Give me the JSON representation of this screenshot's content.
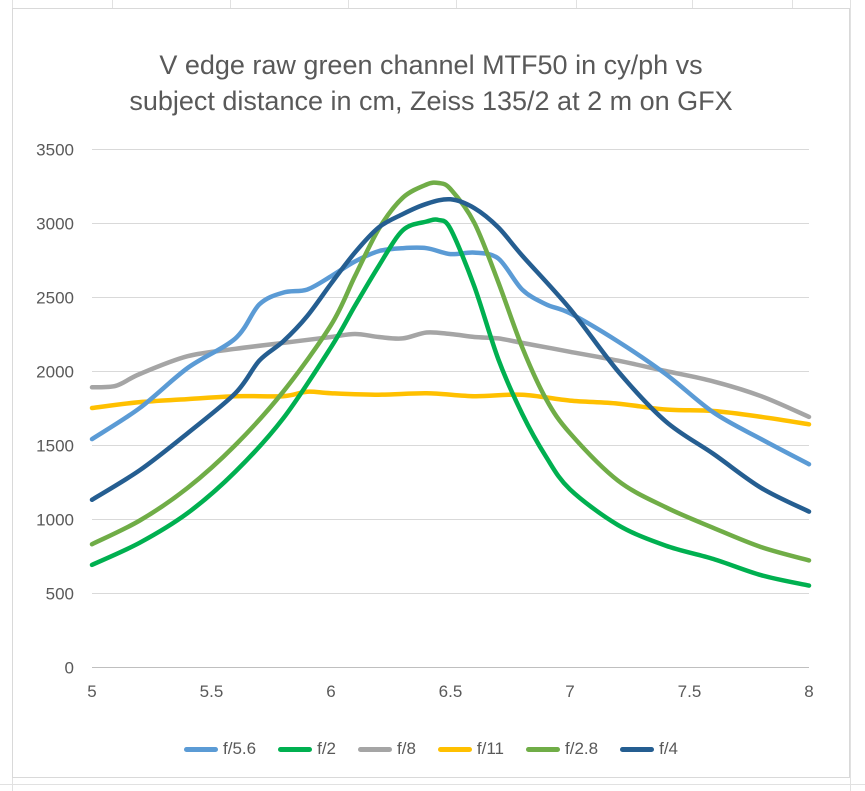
{
  "chart_data": {
    "type": "line",
    "title_lines": [
      "V edge raw green channel MTF50 in cy/ph vs",
      "subject distance in cm, Zeiss 135/2 at 2 m on GFX"
    ],
    "xlabel": "",
    "ylabel": "",
    "xlim": [
      5,
      8
    ],
    "ylim": [
      0,
      3500
    ],
    "x_ticks": [
      5,
      5.5,
      6,
      6.5,
      7,
      7.5,
      8
    ],
    "y_ticks": [
      0,
      500,
      1000,
      1500,
      2000,
      2500,
      3000,
      3500
    ],
    "x_tick_labels": [
      "5",
      "5.5",
      "6",
      "6.5",
      "7",
      "7.5",
      "8"
    ],
    "y_tick_labels": [
      "0",
      "500",
      "1000",
      "1500",
      "2000",
      "2500",
      "3000",
      "3500"
    ],
    "grid": "horizontal",
    "legend_position": "bottom",
    "series": [
      {
        "name": "f/5.6",
        "color": "#5b9bd5",
        "x": [
          5,
          5.2,
          5.4,
          5.6,
          5.7,
          5.8,
          5.9,
          6,
          6.1,
          6.2,
          6.3,
          6.4,
          6.5,
          6.6,
          6.7,
          6.8,
          6.9,
          7,
          7.2,
          7.4,
          7.6,
          7.8,
          8
        ],
        "y": [
          1540,
          1750,
          2020,
          2220,
          2450,
          2530,
          2550,
          2640,
          2740,
          2810,
          2830,
          2830,
          2790,
          2800,
          2760,
          2550,
          2450,
          2390,
          2200,
          1980,
          1720,
          1540,
          1370
        ]
      },
      {
        "name": "f/2",
        "color": "#00b050",
        "x": [
          5,
          5.2,
          5.4,
          5.6,
          5.8,
          6,
          6.1,
          6.2,
          6.3,
          6.4,
          6.45,
          6.5,
          6.6,
          6.7,
          6.8,
          6.9,
          7,
          7.2,
          7.4,
          7.6,
          7.8,
          8
        ],
        "y": [
          690,
          840,
          1040,
          1320,
          1680,
          2160,
          2440,
          2710,
          2950,
          3010,
          3020,
          2960,
          2570,
          2080,
          1710,
          1420,
          1200,
          960,
          820,
          730,
          620,
          550
        ]
      },
      {
        "name": "f/8",
        "color": "#a5a5a5",
        "x": [
          5,
          5.1,
          5.2,
          5.4,
          5.6,
          5.8,
          6,
          6.1,
          6.2,
          6.3,
          6.4,
          6.5,
          6.6,
          6.7,
          6.8,
          6.9,
          7,
          7.2,
          7.4,
          7.6,
          7.8,
          8
        ],
        "y": [
          1890,
          1900,
          1980,
          2100,
          2150,
          2190,
          2230,
          2250,
          2230,
          2220,
          2260,
          2250,
          2230,
          2220,
          2190,
          2160,
          2130,
          2070,
          2000,
          1930,
          1830,
          1690
        ]
      },
      {
        "name": "f/11",
        "color": "#ffc000",
        "x": [
          5,
          5.2,
          5.4,
          5.6,
          5.8,
          5.9,
          6,
          6.2,
          6.4,
          6.6,
          6.8,
          7,
          7.2,
          7.4,
          7.6,
          7.8,
          8
        ],
        "y": [
          1750,
          1790,
          1810,
          1830,
          1830,
          1860,
          1850,
          1840,
          1850,
          1830,
          1840,
          1800,
          1780,
          1740,
          1730,
          1690,
          1640
        ]
      },
      {
        "name": "f/2.8",
        "color": "#70ad47",
        "x": [
          5,
          5.2,
          5.4,
          5.6,
          5.8,
          6,
          6.1,
          6.2,
          6.3,
          6.4,
          6.45,
          6.5,
          6.6,
          6.7,
          6.8,
          6.9,
          7,
          7.2,
          7.4,
          7.6,
          7.8,
          8
        ],
        "y": [
          830,
          990,
          1210,
          1500,
          1860,
          2310,
          2640,
          2960,
          3170,
          3260,
          3270,
          3230,
          3000,
          2600,
          2160,
          1810,
          1580,
          1260,
          1080,
          940,
          810,
          720
        ]
      },
      {
        "name": "f/4",
        "color": "#255e91",
        "x": [
          5,
          5.2,
          5.4,
          5.6,
          5.7,
          5.8,
          5.9,
          6,
          6.1,
          6.2,
          6.3,
          6.4,
          6.5,
          6.6,
          6.7,
          6.8,
          7,
          7.2,
          7.4,
          7.6,
          7.8,
          8
        ],
        "y": [
          1130,
          1330,
          1580,
          1850,
          2070,
          2200,
          2370,
          2590,
          2800,
          2970,
          3060,
          3130,
          3160,
          3100,
          2970,
          2780,
          2420,
          2000,
          1660,
          1440,
          1210,
          1050
        ]
      }
    ]
  }
}
